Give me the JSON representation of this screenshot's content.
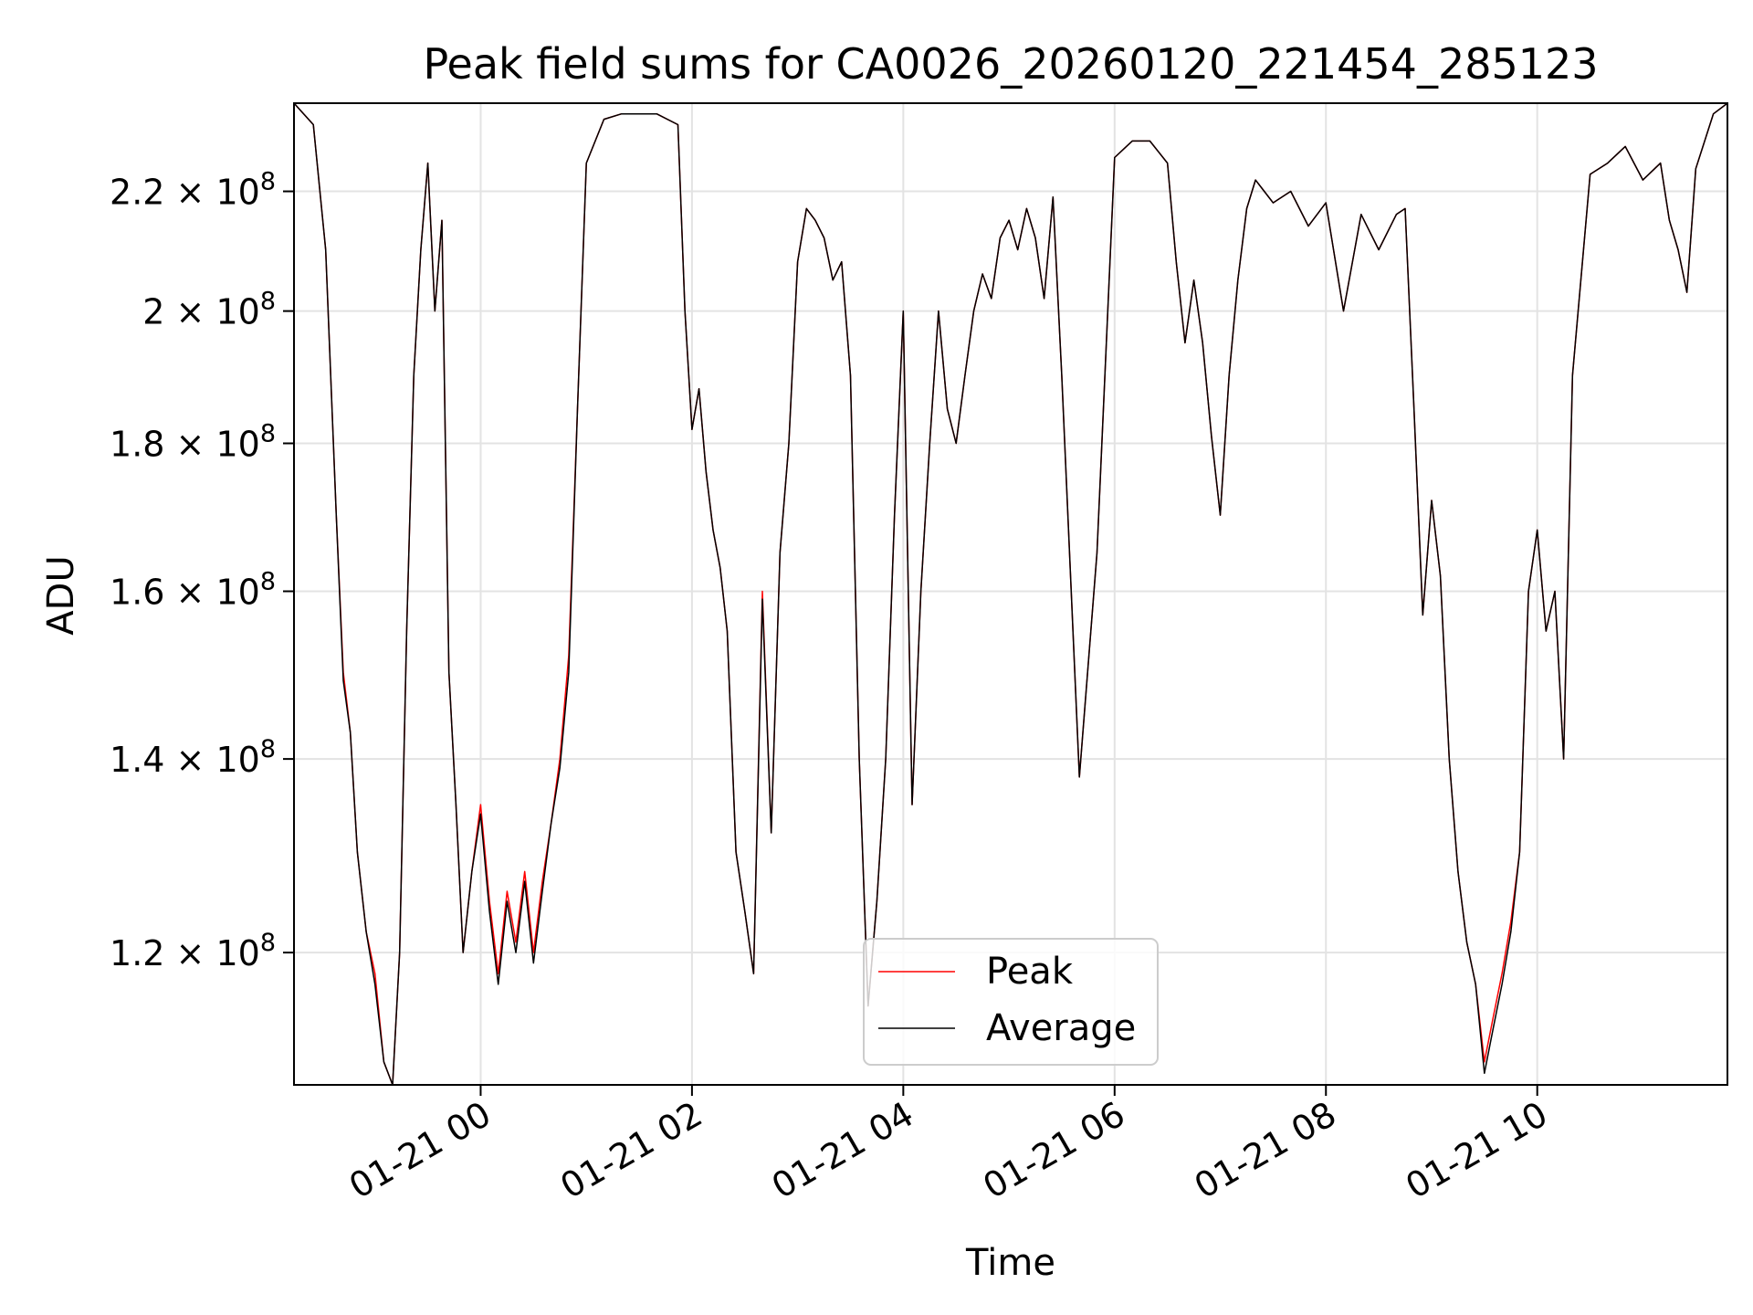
{
  "chart_data": {
    "type": "line",
    "title": "Peak field sums for CA0026_20260120_221454_285123",
    "xlabel": "Time",
    "ylabel": "ADU",
    "y_scale": "log",
    "grid": true,
    "legend_location": "lower center",
    "xlim": [
      "2026-01-20 22:14",
      "2026-01-21 11:48"
    ],
    "ylim": [
      108000000,
      236000000
    ],
    "x_ticks": [
      "01-21 00",
      "01-21 02",
      "01-21 04",
      "01-21 06",
      "01-21 08",
      "01-21 10"
    ],
    "x_tick_values": [
      "2026-01-21 00:00",
      "2026-01-21 02:00",
      "2026-01-21 04:00",
      "2026-01-21 06:00",
      "2026-01-21 08:00",
      "2026-01-21 10:00"
    ],
    "y_ticks": [
      {
        "value": 120000000,
        "mantissa": "1.2",
        "base": "10",
        "exp": "8"
      },
      {
        "value": 140000000,
        "mantissa": "1.4",
        "base": "10",
        "exp": "8"
      },
      {
        "value": 160000000,
        "mantissa": "1.6",
        "base": "10",
        "exp": "8"
      },
      {
        "value": 180000000,
        "mantissa": "1.8",
        "base": "10",
        "exp": "8"
      },
      {
        "value": 200000000,
        "mantissa": "2",
        "base": "10",
        "exp": "8"
      },
      {
        "value": 220000000,
        "mantissa": "2.2",
        "base": "10",
        "exp": "8"
      }
    ],
    "x": [
      "2026-01-20 22:14",
      "2026-01-20 22:25",
      "2026-01-20 22:32",
      "2026-01-20 22:38",
      "2026-01-20 22:42",
      "2026-01-20 22:46",
      "2026-01-20 22:50",
      "2026-01-20 22:55",
      "2026-01-20 23:00",
      "2026-01-20 23:05",
      "2026-01-20 23:10",
      "2026-01-20 23:14",
      "2026-01-20 23:18",
      "2026-01-20 23:22",
      "2026-01-20 23:26",
      "2026-01-20 23:30",
      "2026-01-20 23:34",
      "2026-01-20 23:38",
      "2026-01-20 23:42",
      "2026-01-20 23:46",
      "2026-01-20 23:50",
      "2026-01-20 23:55",
      "2026-01-21 00:00",
      "2026-01-21 00:05",
      "2026-01-21 00:10",
      "2026-01-21 00:15",
      "2026-01-21 00:20",
      "2026-01-21 00:25",
      "2026-01-21 00:30",
      "2026-01-21 00:35",
      "2026-01-21 00:40",
      "2026-01-21 00:45",
      "2026-01-21 00:50",
      "2026-01-21 00:55",
      "2026-01-21 01:00",
      "2026-01-21 01:10",
      "2026-01-21 01:20",
      "2026-01-21 01:40",
      "2026-01-21 01:52",
      "2026-01-21 01:56",
      "2026-01-21 02:00",
      "2026-01-21 02:04",
      "2026-01-21 02:08",
      "2026-01-21 02:12",
      "2026-01-21 02:16",
      "2026-01-21 02:20",
      "2026-01-21 02:25",
      "2026-01-21 02:30",
      "2026-01-21 02:35",
      "2026-01-21 02:40",
      "2026-01-21 02:45",
      "2026-01-21 02:50",
      "2026-01-21 02:55",
      "2026-01-21 03:00",
      "2026-01-21 03:05",
      "2026-01-21 03:10",
      "2026-01-21 03:15",
      "2026-01-21 03:20",
      "2026-01-21 03:25",
      "2026-01-21 03:30",
      "2026-01-21 03:35",
      "2026-01-21 03:40",
      "2026-01-21 03:45",
      "2026-01-21 03:50",
      "2026-01-21 03:55",
      "2026-01-21 04:00",
      "2026-01-21 04:05",
      "2026-01-21 04:10",
      "2026-01-21 04:15",
      "2026-01-21 04:20",
      "2026-01-21 04:25",
      "2026-01-21 04:30",
      "2026-01-21 04:35",
      "2026-01-21 04:40",
      "2026-01-21 04:45",
      "2026-01-21 04:50",
      "2026-01-21 04:55",
      "2026-01-21 05:00",
      "2026-01-21 05:05",
      "2026-01-21 05:10",
      "2026-01-21 05:15",
      "2026-01-21 05:20",
      "2026-01-21 05:25",
      "2026-01-21 05:30",
      "2026-01-21 05:40",
      "2026-01-21 05:50",
      "2026-01-21 06:00",
      "2026-01-21 06:10",
      "2026-01-21 06:20",
      "2026-01-21 06:30",
      "2026-01-21 06:35",
      "2026-01-21 06:40",
      "2026-01-21 06:45",
      "2026-01-21 06:50",
      "2026-01-21 06:55",
      "2026-01-21 07:00",
      "2026-01-21 07:05",
      "2026-01-21 07:10",
      "2026-01-21 07:15",
      "2026-01-21 07:20",
      "2026-01-21 07:25",
      "2026-01-21 07:30",
      "2026-01-21 07:40",
      "2026-01-21 07:50",
      "2026-01-21 08:00",
      "2026-01-21 08:10",
      "2026-01-21 08:20",
      "2026-01-21 08:30",
      "2026-01-21 08:40",
      "2026-01-21 08:45",
      "2026-01-21 08:50",
      "2026-01-21 08:55",
      "2026-01-21 09:00",
      "2026-01-21 09:05",
      "2026-01-21 09:10",
      "2026-01-21 09:15",
      "2026-01-21 09:20",
      "2026-01-21 09:25",
      "2026-01-21 09:30",
      "2026-01-21 09:35",
      "2026-01-21 09:40",
      "2026-01-21 09:45",
      "2026-01-21 09:50",
      "2026-01-21 09:55",
      "2026-01-21 10:00",
      "2026-01-21 10:05",
      "2026-01-21 10:10",
      "2026-01-21 10:15",
      "2026-01-21 10:20",
      "2026-01-21 10:30",
      "2026-01-21 10:40",
      "2026-01-21 10:50",
      "2026-01-21 11:00",
      "2026-01-21 11:10",
      "2026-01-21 11:15",
      "2026-01-21 11:20",
      "2026-01-21 11:25",
      "2026-01-21 11:30",
      "2026-01-21 11:40",
      "2026-01-21 11:48"
    ],
    "series": [
      {
        "name": "Peak",
        "color": "#ff0000",
        "values": [
          236000000,
          232000000,
          210000000,
          170000000,
          150000000,
          143000000,
          130000000,
          122000000,
          118000000,
          110000000,
          108000000,
          120000000,
          155000000,
          190000000,
          210000000,
          225000000,
          200000000,
          215000000,
          150000000,
          135000000,
          120000000,
          128000000,
          135000000,
          125000000,
          118000000,
          126000000,
          121000000,
          128000000,
          120000000,
          127000000,
          133000000,
          140000000,
          152000000,
          185000000,
          225000000,
          233000000,
          234000000,
          234000000,
          232000000,
          200000000,
          182000000,
          188000000,
          176000000,
          168000000,
          163000000,
          155000000,
          130000000,
          124000000,
          118000000,
          160000000,
          132000000,
          165000000,
          180000000,
          208000000,
          217000000,
          215000000,
          212000000,
          205000000,
          208000000,
          190000000,
          140000000,
          115000000,
          125000000,
          140000000,
          170000000,
          200000000,
          135000000,
          160000000,
          180000000,
          200000000,
          185000000,
          180000000,
          190000000,
          200000000,
          206000000,
          202000000,
          212000000,
          215000000,
          210000000,
          217000000,
          212000000,
          202000000,
          219000000,
          190000000,
          138000000,
          165000000,
          226000000,
          229000000,
          229000000,
          225000000,
          208000000,
          195000000,
          205000000,
          195000000,
          181000000,
          170000000,
          190000000,
          205000000,
          217000000,
          222000000,
          220000000,
          218000000,
          220000000,
          214000000,
          218000000,
          200000000,
          216000000,
          210000000,
          216000000,
          217000000,
          185000000,
          157000000,
          172000000,
          162000000,
          140000000,
          128000000,
          121000000,
          117000000,
          110000000,
          114000000,
          118000000,
          123000000,
          130000000,
          160000000,
          168000000,
          155000000,
          160000000,
          140000000,
          190000000,
          223000000,
          225000000,
          228000000,
          222000000,
          225000000,
          215000000,
          210000000,
          203000000,
          224000000,
          234000000,
          236000000
        ]
      },
      {
        "name": "Average",
        "color": "#000000",
        "values": [
          236000000,
          232000000,
          210000000,
          170000000,
          149000000,
          143000000,
          130000000,
          122000000,
          117000000,
          110000000,
          108000000,
          120000000,
          155000000,
          190000000,
          210000000,
          225000000,
          200000000,
          215000000,
          150000000,
          135000000,
          120000000,
          128000000,
          134000000,
          124000000,
          117000000,
          125000000,
          120000000,
          127000000,
          119000000,
          126000000,
          133000000,
          139000000,
          150000000,
          185000000,
          225000000,
          233000000,
          234000000,
          234000000,
          232000000,
          200000000,
          182000000,
          188000000,
          176000000,
          168000000,
          163000000,
          155000000,
          130000000,
          124000000,
          118000000,
          159000000,
          132000000,
          165000000,
          180000000,
          208000000,
          217000000,
          215000000,
          212000000,
          205000000,
          208000000,
          190000000,
          140000000,
          115000000,
          125000000,
          140000000,
          170000000,
          200000000,
          135000000,
          160000000,
          180000000,
          200000000,
          185000000,
          180000000,
          190000000,
          200000000,
          206000000,
          202000000,
          212000000,
          215000000,
          210000000,
          217000000,
          212000000,
          202000000,
          219000000,
          190000000,
          138000000,
          165000000,
          226000000,
          229000000,
          229000000,
          225000000,
          208000000,
          195000000,
          205000000,
          195000000,
          181000000,
          170000000,
          190000000,
          205000000,
          217000000,
          222000000,
          220000000,
          218000000,
          220000000,
          214000000,
          218000000,
          200000000,
          216000000,
          210000000,
          216000000,
          217000000,
          185000000,
          157000000,
          172000000,
          162000000,
          140000000,
          128000000,
          121000000,
          117000000,
          109000000,
          113000000,
          117000000,
          122000000,
          130000000,
          160000000,
          168000000,
          155000000,
          160000000,
          140000000,
          190000000,
          223000000,
          225000000,
          228000000,
          222000000,
          225000000,
          215000000,
          210000000,
          203000000,
          224000000,
          234000000,
          236000000
        ]
      }
    ]
  }
}
